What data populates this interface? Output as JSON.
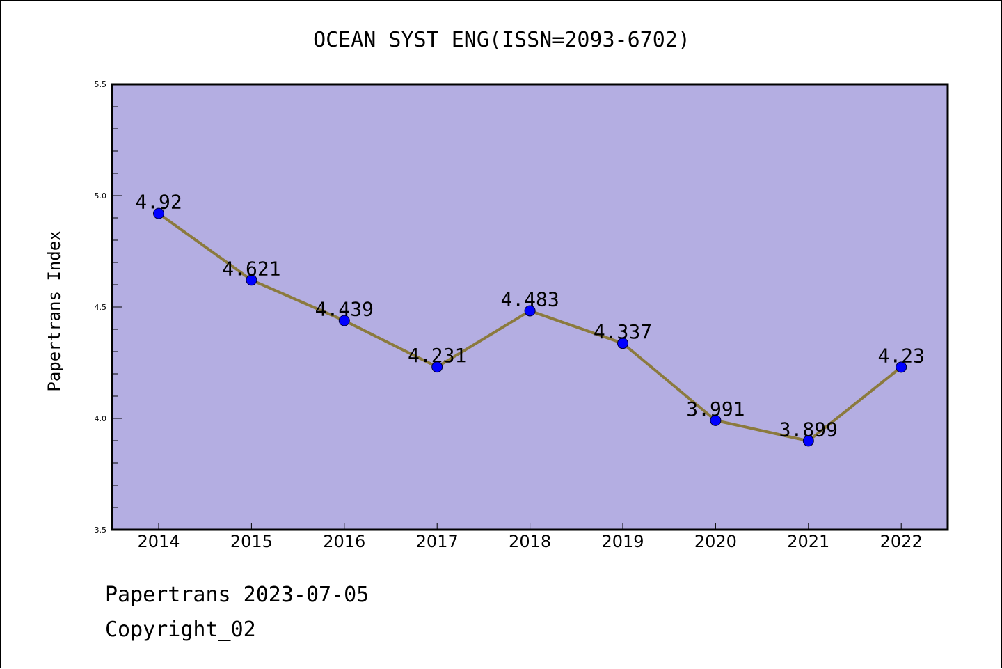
{
  "chart_data": {
    "type": "line",
    "title": "OCEAN SYST ENG(ISSN=2093-6702)",
    "xlabel": "",
    "ylabel": "Papertrans Index",
    "categories": [
      "2014",
      "2015",
      "2016",
      "2017",
      "2018",
      "2019",
      "2020",
      "2021",
      "2022"
    ],
    "series": [
      {
        "values": [
          4.92,
          4.621,
          4.439,
          4.231,
          4.483,
          4.337,
          3.991,
          3.899,
          4.23
        ],
        "labels": [
          "4.92",
          "4.621",
          "4.439",
          "4.231",
          "4.483",
          "4.337",
          "3.991",
          "3.899",
          "4.23"
        ]
      }
    ],
    "ylim": [
      3.5,
      5.5
    ],
    "yticks": [
      "3.5",
      "4.0",
      "4.5",
      "5.0",
      "5.5"
    ],
    "grid": false,
    "colors": {
      "plot_background": "#b4aee2",
      "line": "#8b7a3d",
      "marker": "#0000ff"
    }
  },
  "footer": {
    "line1": "Papertrans 2023-07-05",
    "line2": "Copyright_02"
  }
}
